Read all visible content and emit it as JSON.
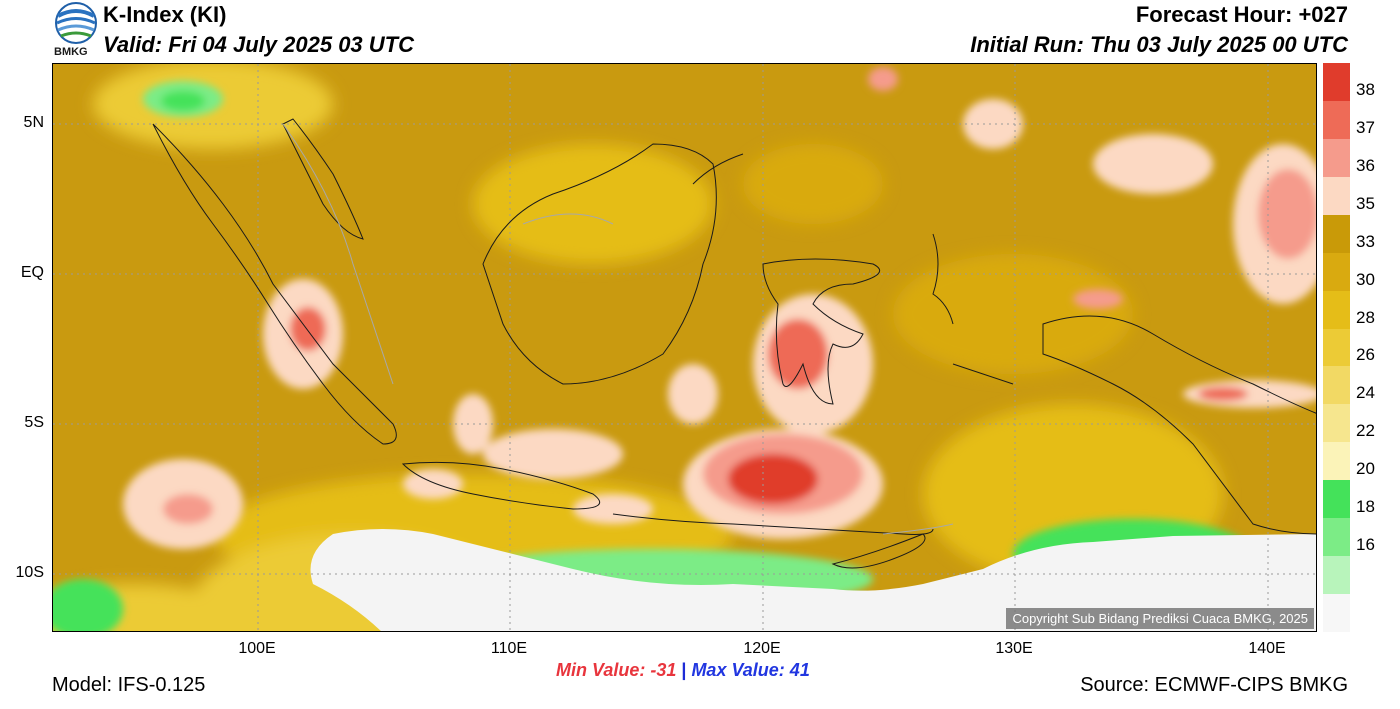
{
  "header": {
    "title": "K-Index (KI)",
    "valid": "Valid: Fri 04 July 2025 03 UTC",
    "forecast_hour": "Forecast Hour: +027",
    "initial_run": "Initial Run: Thu 03 July 2025 00 UTC"
  },
  "logo": {
    "text": "BMKG"
  },
  "map": {
    "lat_labels": [
      "5N",
      "EQ",
      "5S",
      "10S"
    ],
    "lon_labels": [
      "100E",
      "110E",
      "120E",
      "130E",
      "140E"
    ],
    "copyright": "Copyright Sub Bidang Prediksi Cuaca BMKG, 2025"
  },
  "colorbar": {
    "labels": [
      "38",
      "37",
      "36",
      "35",
      "33",
      "30",
      "28",
      "26",
      "24",
      "22",
      "20",
      "18",
      "16"
    ],
    "colors": [
      "#e03c2c",
      "#ee6b57",
      "#f59b8c",
      "#fcd9c3",
      "#c99a08",
      "#d9aa10",
      "#e5bd18",
      "#eccb36",
      "#f2d964",
      "#f6e68e",
      "#fbf3b8",
      "#44e25a",
      "#7cec86",
      "#b8f4bb",
      "#f7f7f7"
    ]
  },
  "footer": {
    "min_value": "Min Value: -31",
    "separator": "|",
    "max_value": "Max Value:  41",
    "model": "Model: IFS-0.125",
    "source": "Source: ECMWF-CIPS BMKG"
  }
}
